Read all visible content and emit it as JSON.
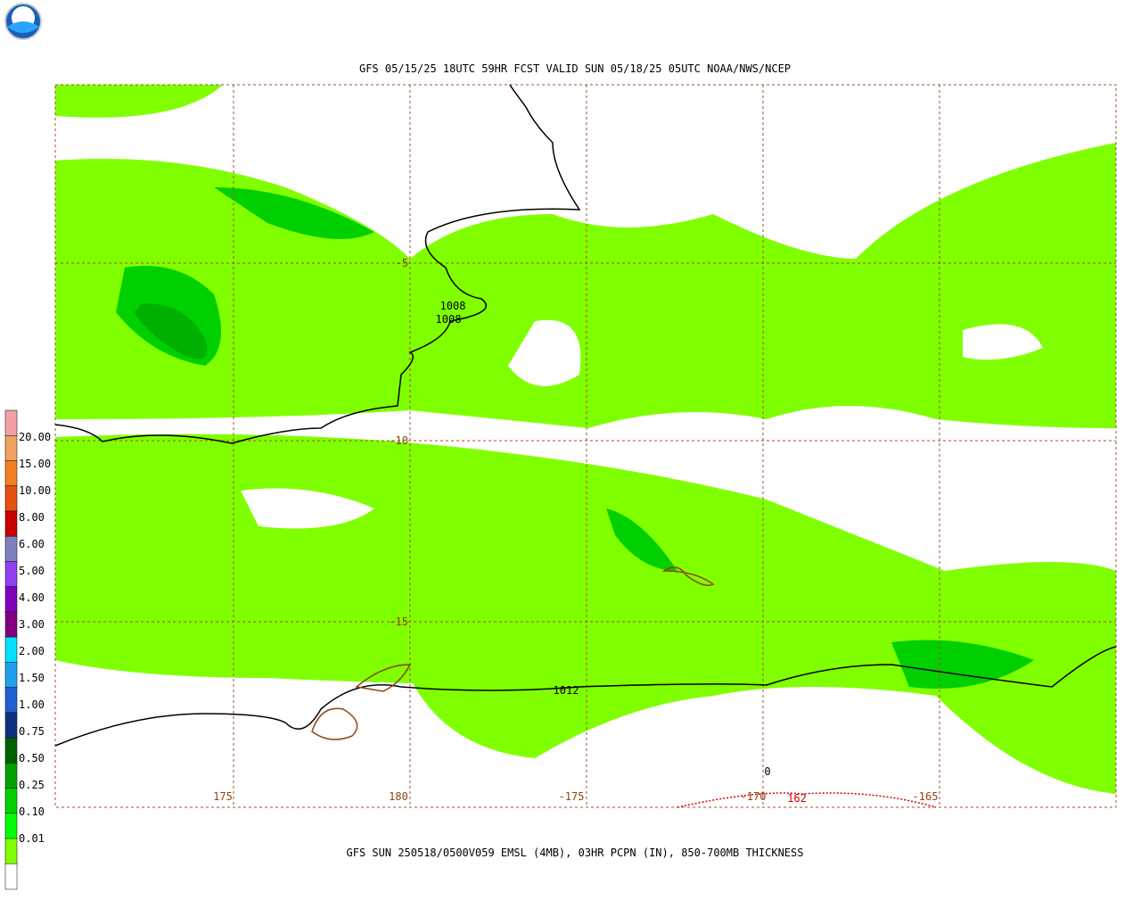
{
  "header": {
    "title": "GFS 05/15/25 18UTC 59HR FCST VALID SUN 05/18/25 05UTC NOAA/NWS/NCEP"
  },
  "footer": {
    "caption": "GFS SUN 250518/0500V059 EMSL (4MB), 03HR PCPN (IN), 850-700MB THICKNESS"
  },
  "legend": {
    "labels": [
      "20.00",
      "15.00",
      "10.00",
      "8.00",
      "6.00",
      "5.00",
      "4.00",
      "3.00",
      "2.00",
      "1.50",
      "1.00",
      "0.75",
      "0.50",
      "0.25",
      "0.10",
      "0.01"
    ]
  },
  "map": {
    "lon_labels": [
      "175",
      "180",
      "-175",
      "-170",
      "-165"
    ],
    "lat_labels": [
      "-5",
      "-10",
      "-15"
    ],
    "contour_labels": [
      "1008",
      "1008",
      "1012",
      "0",
      "162"
    ]
  }
}
